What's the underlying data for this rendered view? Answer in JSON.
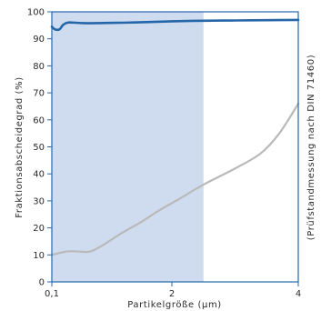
{
  "chart_data": {
    "type": "line",
    "title": "",
    "xlabel": "Partikelgröße (µm)",
    "ylabel": "Fraktionsabscheidegrad (%)",
    "right_label": "(Prüfstandmessung nach DIN 71460)",
    "xlim": [
      0.1,
      4
    ],
    "ylim": [
      0,
      100
    ],
    "x_ticks": [
      {
        "value": 0.1,
        "label": "0,1"
      },
      {
        "value": 2,
        "label": "2"
      },
      {
        "value": 4,
        "label": "4"
      }
    ],
    "y_ticks": [
      0,
      10,
      20,
      30,
      40,
      50,
      60,
      70,
      80,
      90,
      100
    ],
    "y_tick_labels": [
      "0",
      "10",
      "20",
      "30",
      "40",
      "50",
      "60",
      "70",
      "80",
      "90",
      "100"
    ],
    "shaded_region": {
      "x_from": 0.1,
      "x_to": 2.5,
      "color": "#cfdcf0"
    },
    "grid": false,
    "series": [
      {
        "color": "#2566a8",
        "x": [
          0.1,
          0.15,
          0.22,
          0.28,
          0.35,
          0.45,
          0.6,
          0.8,
          1.0,
          1.3,
          1.6,
          2.0,
          2.5,
          3.0,
          3.5,
          4.0
        ],
        "y": [
          94.5,
          93.5,
          93.5,
          95.2,
          96.0,
          96.0,
          95.8,
          95.8,
          95.9,
          96.0,
          96.2,
          96.5,
          96.7,
          96.8,
          96.9,
          97.0
        ]
      },
      {
        "color": "#b9b9b9",
        "x": [
          0.1,
          0.2,
          0.35,
          0.5,
          0.7,
          0.9,
          1.2,
          1.5,
          1.8,
          2.1,
          2.5,
          3.0,
          3.4,
          3.7,
          4.0
        ],
        "y": [
          10.0,
          10.6,
          11.3,
          11.3,
          11.2,
          13.5,
          18.0,
          22.0,
          26.5,
          30.5,
          36.0,
          42.0,
          47.5,
          55.0,
          66.0
        ]
      }
    ]
  }
}
